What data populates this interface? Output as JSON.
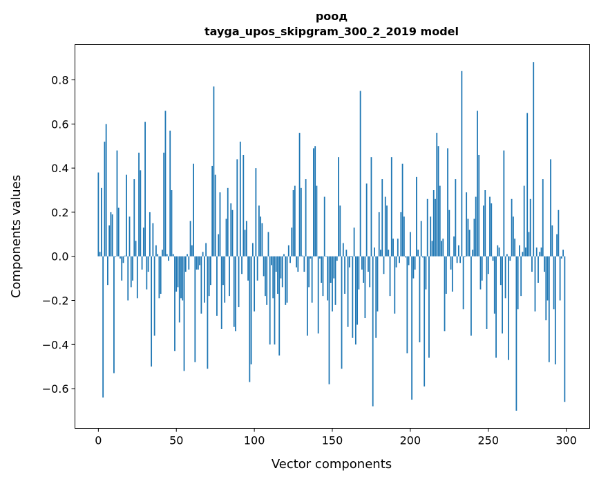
{
  "chart_data": {
    "type": "bar",
    "title": "роод",
    "subtitle": "tayga_upos_skipgram_300_2_2019 model",
    "xlabel": "Vector components",
    "ylabel": "Components values",
    "xlim": [
      -15,
      315
    ],
    "ylim": [
      -0.78,
      0.96
    ],
    "xticks": [
      0,
      50,
      100,
      150,
      200,
      250,
      300
    ],
    "yticks": [
      -0.6,
      -0.4,
      -0.2,
      0.0,
      0.2,
      0.4,
      0.6,
      0.8
    ],
    "xtick_labels": [
      "0",
      "50",
      "100",
      "150",
      "200",
      "250",
      "300"
    ],
    "ytick_labels": [
      "−0.6",
      "−0.4",
      "−0.2",
      "0.0",
      "0.2",
      "0.4",
      "0.6",
      "0.8"
    ],
    "grid": false,
    "bar_color": "#1f77b4",
    "values": [
      0.38,
      0.02,
      0.31,
      -0.64,
      0.52,
      0.6,
      -0.13,
      0.14,
      0.2,
      0.19,
      -0.53,
      -0.003,
      0.48,
      0.22,
      -0.01,
      -0.11,
      -0.03,
      0.003,
      0.37,
      -0.2,
      0.18,
      -0.14,
      -0.11,
      0.35,
      0.07,
      -0.19,
      0.47,
      0.39,
      -0.06,
      0.13,
      0.61,
      -0.15,
      -0.07,
      0.2,
      -0.5,
      0.15,
      -0.36,
      0.05,
      0.01,
      -0.19,
      -0.17,
      0.03,
      0.47,
      0.66,
      0.01,
      -0.02,
      0.57,
      0.3,
      0.01,
      -0.43,
      -0.16,
      -0.14,
      -0.3,
      -0.19,
      -0.2,
      -0.52,
      -0.07,
      0.01,
      -0.06,
      0.16,
      0.05,
      0.42,
      -0.48,
      -0.06,
      -0.06,
      -0.04,
      -0.26,
      0.02,
      -0.21,
      0.06,
      -0.51,
      -0.18,
      -0.13,
      0.41,
      0.77,
      0.37,
      -0.27,
      0.1,
      0.29,
      -0.33,
      -0.13,
      -0.21,
      0.17,
      0.31,
      -0.18,
      0.24,
      0.21,
      -0.32,
      -0.34,
      0.44,
      -0.23,
      0.52,
      -0.08,
      0.46,
      0.12,
      0.16,
      -0.11,
      -0.57,
      -0.49,
      0.06,
      -0.25,
      0.4,
      -0.11,
      0.23,
      0.18,
      0.15,
      -0.09,
      -0.18,
      -0.22,
      0.11,
      -0.4,
      -0.04,
      -0.19,
      -0.4,
      -0.07,
      -0.17,
      -0.45,
      -0.1,
      -0.14,
      0.01,
      -0.22,
      -0.21,
      0.05,
      -0.03,
      0.13,
      0.3,
      0.32,
      -0.05,
      -0.07,
      0.56,
      0.31,
      0.003,
      -0.07,
      0.35,
      -0.36,
      -0.14,
      -0.01,
      -0.21,
      0.49,
      0.5,
      0.32,
      -0.35,
      -0.01,
      -0.12,
      -0.18,
      0.27,
      0.002,
      -0.2,
      -0.58,
      -0.12,
      -0.25,
      -0.1,
      -0.22,
      -0.02,
      0.45,
      0.23,
      -0.51,
      0.06,
      -0.17,
      0.03,
      -0.32,
      -0.05,
      -0.003,
      -0.37,
      0.13,
      -0.4,
      -0.31,
      -0.15,
      0.75,
      -0.06,
      -0.12,
      -0.28,
      0.33,
      -0.07,
      -0.14,
      0.45,
      -0.68,
      0.04,
      -0.37,
      -0.25,
      0.2,
      0.03,
      0.35,
      -0.08,
      0.27,
      0.23,
      0.03,
      -0.18,
      0.45,
      0.08,
      -0.26,
      -0.05,
      0.08,
      -0.03,
      0.2,
      0.42,
      0.18,
      -0.005,
      -0.44,
      -0.04,
      0.11,
      -0.65,
      -0.1,
      -0.06,
      0.36,
      0.03,
      -0.39,
      0.16,
      -0.005,
      -0.59,
      -0.15,
      0.26,
      -0.46,
      0.18,
      0.07,
      0.3,
      0.26,
      0.56,
      0.5,
      0.32,
      0.07,
      0.08,
      -0.34,
      -0.17,
      0.49,
      0.21,
      -0.06,
      -0.16,
      0.09,
      0.35,
      -0.03,
      0.05,
      -0.03,
      0.84,
      -0.24,
      -0.003,
      0.29,
      0.17,
      0.12,
      -0.36,
      0.03,
      0.17,
      0.27,
      0.66,
      0.46,
      -0.15,
      -0.11,
      0.23,
      0.3,
      -0.33,
      -0.08,
      0.27,
      0.24,
      -0.02,
      -0.26,
      -0.46,
      0.05,
      0.04,
      -0.13,
      -0.35,
      0.48,
      -0.19,
      0.01,
      -0.47,
      -0.02,
      0.26,
      0.18,
      0.08,
      -0.7,
      -0.24,
      0.05,
      -0.18,
      0.02,
      0.32,
      0.04,
      0.65,
      0.11,
      0.26,
      -0.07,
      0.88,
      -0.25,
      0.04,
      -0.12,
      0.02,
      0.04,
      0.35,
      -0.07,
      -0.29,
      -0.2,
      -0.48,
      0.44,
      0.14,
      -0.24,
      -0.49,
      0.1,
      0.21,
      -0.2,
      -0.01,
      0.03,
      -0.66
    ]
  }
}
